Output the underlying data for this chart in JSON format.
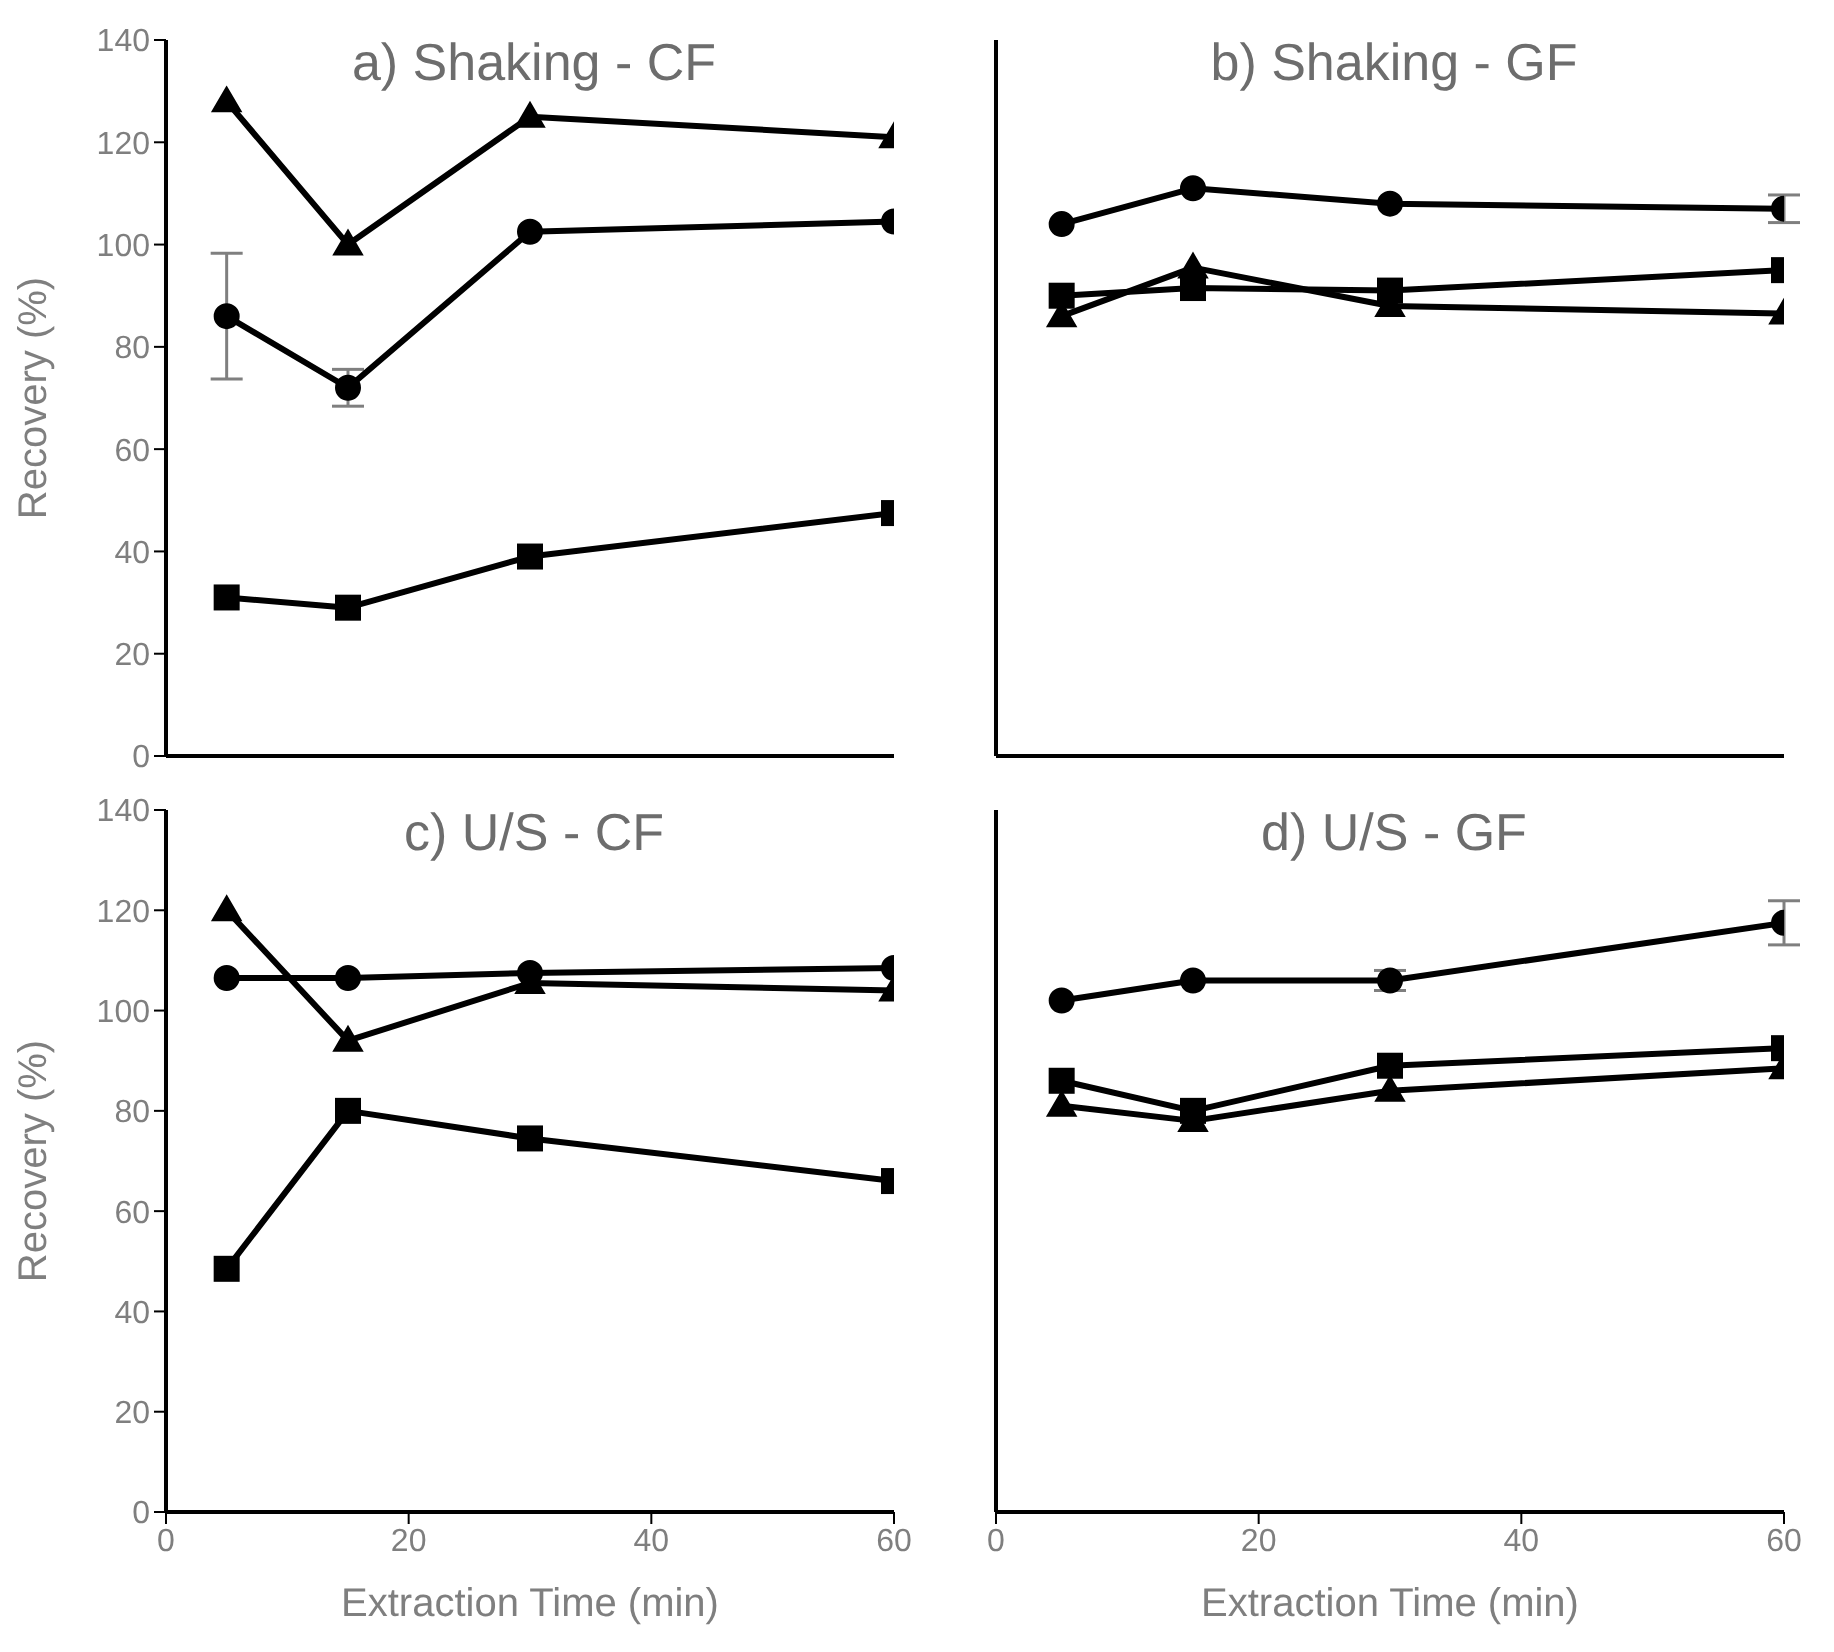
{
  "chart_data": [
    {
      "type": "line",
      "title": "a) Shaking - CF",
      "ylabel": "Recovery (%)",
      "x": [
        5,
        15,
        30,
        60
      ],
      "xlim": [
        0,
        60
      ],
      "xticks": [
        0,
        20,
        40,
        60
      ],
      "ylim": [
        0,
        140
      ],
      "yticks": [
        0,
        20,
        40,
        60,
        80,
        100,
        120,
        140
      ],
      "tick_labels": "y",
      "series": [
        {
          "color": "#000000",
          "marker": "triangle",
          "values": [
            128,
            100,
            125,
            121
          ]
        },
        {
          "color": "#000000",
          "marker": "circle",
          "values": [
            86,
            72,
            102.5,
            104.5
          ],
          "errors": [
            12.3,
            3.6,
            null,
            null
          ]
        },
        {
          "color": "#000000",
          "marker": "square",
          "values": [
            31,
            29,
            39,
            47.5
          ]
        }
      ]
    },
    {
      "type": "line",
      "title": "b) Shaking - GF",
      "x": [
        5,
        15,
        30,
        60
      ],
      "xlim": [
        0,
        60
      ],
      "xticks": [
        0,
        20,
        40,
        60
      ],
      "ylim": [
        0,
        140
      ],
      "yticks": [
        0,
        20,
        40,
        60,
        80,
        100,
        120,
        140
      ],
      "tick_labels": false,
      "series": [
        {
          "color": "#000000",
          "marker": "circle",
          "values": [
            104,
            111,
            108,
            107
          ],
          "errors": [
            null,
            null,
            null,
            2.7
          ]
        },
        {
          "color": "#000000",
          "marker": "square",
          "values": [
            90,
            91.5,
            91,
            95
          ]
        },
        {
          "color": "#000000",
          "marker": "triangle",
          "values": [
            86,
            95.5,
            88,
            86.5
          ]
        }
      ]
    },
    {
      "type": "line",
      "title": "c) U/S - CF",
      "xlabel": "Extraction Time (min)",
      "ylabel": "Recovery (%)",
      "x": [
        5,
        15,
        30,
        60
      ],
      "xlim": [
        0,
        60
      ],
      "xticks": [
        0,
        20,
        40,
        60
      ],
      "ylim": [
        0,
        140
      ],
      "yticks": [
        0,
        20,
        40,
        60,
        80,
        100,
        120,
        140
      ],
      "series": [
        {
          "color": "#000000",
          "marker": "triangle",
          "values": [
            120,
            94,
            105.5,
            104
          ]
        },
        {
          "color": "#000000",
          "marker": "circle",
          "values": [
            106.5,
            106.5,
            107.5,
            108.5
          ]
        },
        {
          "color": "#000000",
          "marker": "square",
          "values": [
            48.5,
            80,
            74.5,
            66
          ]
        }
      ]
    },
    {
      "type": "line",
      "title": "d) U/S - GF",
      "xlabel": "Extraction Time (min)",
      "x": [
        5,
        15,
        30,
        60
      ],
      "xlim": [
        0,
        60
      ],
      "xticks": [
        0,
        20,
        40,
        60
      ],
      "ylim": [
        0,
        140
      ],
      "yticks": [
        0,
        20,
        40,
        60,
        80,
        100,
        120,
        140
      ],
      "tick_labels": "x",
      "series": [
        {
          "color": "#000000",
          "marker": "circle",
          "values": [
            102,
            106,
            106,
            117.5
          ],
          "errors": [
            null,
            null,
            2,
            4.4
          ]
        },
        {
          "color": "#000000",
          "marker": "square",
          "values": [
            86,
            80,
            89,
            92.5
          ]
        },
        {
          "color": "#000000",
          "marker": "triangle",
          "values": [
            81,
            78,
            84,
            88.5
          ]
        }
      ]
    }
  ]
}
